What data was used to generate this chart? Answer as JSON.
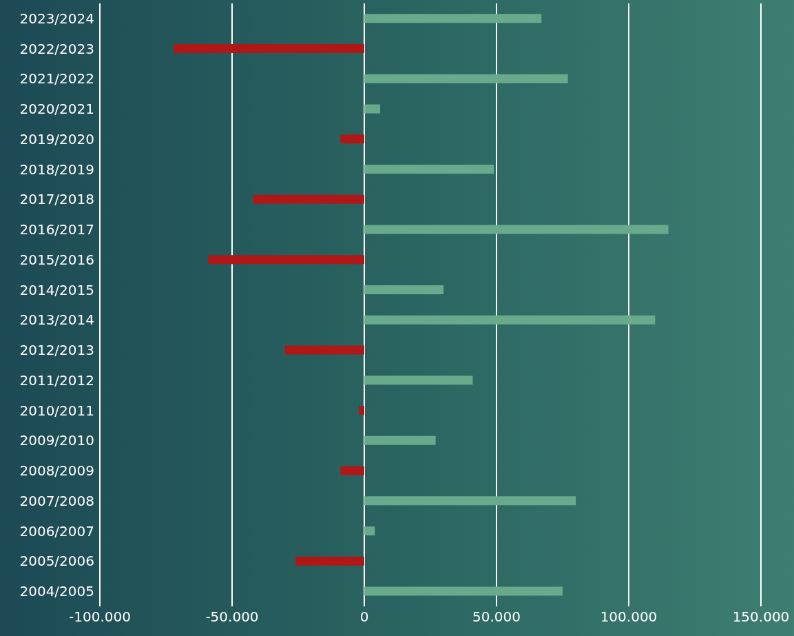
{
  "chart_data": {
    "type": "bar",
    "orientation": "horizontal",
    "categories": [
      "2023/2024",
      "2022/2023",
      "2021/2022",
      "2020/2021",
      "2019/2020",
      "2018/2019",
      "2017/2018",
      "2016/2017",
      "2015/2016",
      "2014/2015",
      "2013/2014",
      "2012/2013",
      "2011/2012",
      "2010/2011",
      "2009/2010",
      "2008/2009",
      "2007/2008",
      "2006/2007",
      "2005/2006",
      "2004/2005"
    ],
    "values": [
      67000,
      -72000,
      77000,
      6000,
      -9000,
      49000,
      -42000,
      115000,
      -59000,
      30000,
      110000,
      -30000,
      41000,
      -2000,
      27000,
      -9000,
      80000,
      4000,
      -26000,
      75000
    ],
    "colors": [
      "#6aaa8c",
      "#b01818",
      "#6aaa8c",
      "#6aaa8c",
      "#b01818",
      "#6aaa8c",
      "#b01818",
      "#6aaa8c",
      "#b01818",
      "#6aaa8c",
      "#6aaa8c",
      "#b01818",
      "#6aaa8c",
      "#b01818",
      "#6aaa8c",
      "#b01818",
      "#6aaa8c",
      "#6aaa8c",
      "#b01818",
      "#6aaa8c"
    ],
    "xlim": [
      -100000,
      150000
    ],
    "xticks": [
      {
        "value": -100000,
        "label": "-100.000"
      },
      {
        "value": -50000,
        "label": "-50.000"
      },
      0,
      {
        "value": 50000,
        "label": "50.000"
      },
      {
        "value": 100000,
        "label": "100.000"
      },
      {
        "value": 150000,
        "label": "150.000"
      }
    ],
    "grid": "x",
    "legend": false
  }
}
